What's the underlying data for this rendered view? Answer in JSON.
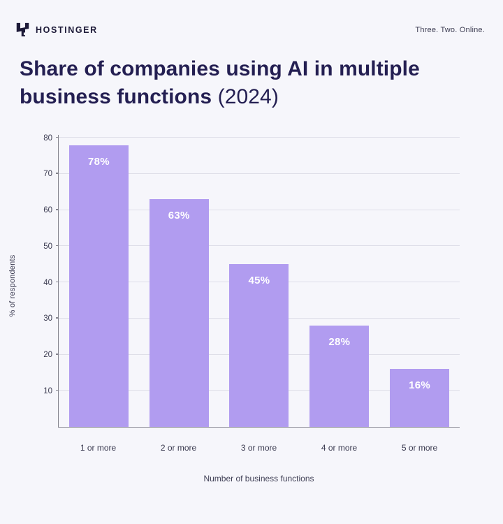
{
  "header": {
    "brand": "HOSTINGER",
    "tagline": "Three. Two. Online."
  },
  "title": {
    "main": "Share of companies using AI in multiple business functions",
    "year": "(2024)"
  },
  "chart_data": {
    "type": "bar",
    "title": "Share of companies using AI in multiple business functions (2024)",
    "categories": [
      "1 or more",
      "2 or more",
      "3 or more",
      "4 or more",
      "5 or more"
    ],
    "values": [
      78,
      63,
      45,
      28,
      16
    ],
    "bar_labels": [
      "78%",
      "63%",
      "45%",
      "28%",
      "16%"
    ],
    "xlabel": "Number of business functions",
    "ylabel": "% of respondents",
    "ylim": [
      0,
      81
    ],
    "yticks": [
      10,
      20,
      30,
      40,
      50,
      60,
      70,
      80
    ],
    "grid": true,
    "legend": false
  },
  "colors": {
    "background": "#f6f6fb",
    "bar": "#b19cf0",
    "bar_label": "#ffffff",
    "title_text": "#241f52",
    "axis_text": "#3a3a50",
    "gridline": "#dedee8",
    "axis_line": "#82828c",
    "logo": "#1d1a38"
  }
}
